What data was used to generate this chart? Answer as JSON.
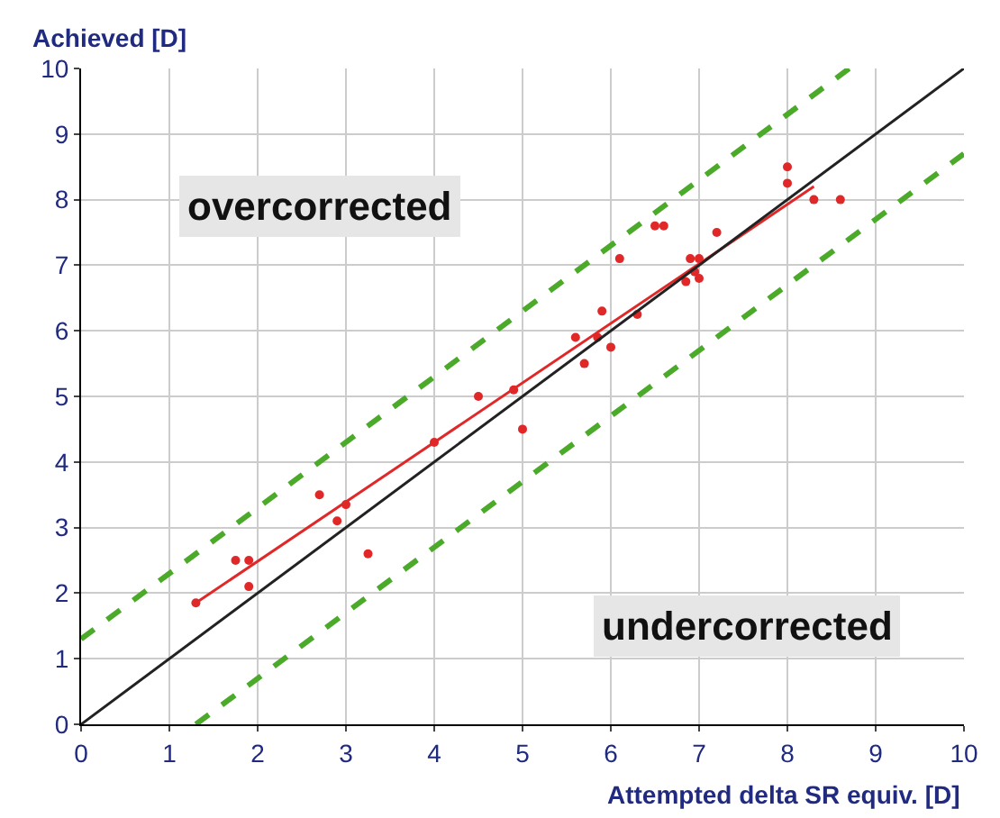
{
  "chart_data": {
    "type": "scatter",
    "xlabel": "Attempted delta SR equiv. [D]",
    "ylabel": "Achieved [D]",
    "xlim": [
      0,
      10
    ],
    "ylim": [
      0,
      10
    ],
    "xticks": [
      0,
      1,
      2,
      3,
      4,
      5,
      6,
      7,
      8,
      9,
      10
    ],
    "yticks": [
      0,
      1,
      2,
      3,
      4,
      5,
      6,
      7,
      8,
      9,
      10
    ],
    "grid": true,
    "marker": "circle",
    "annotations": [
      "overcorrected",
      "undercorrected"
    ],
    "series": [
      {
        "color": "#e02828",
        "x": [
          1.3,
          1.75,
          1.9,
          1.9,
          2.7,
          2.9,
          3.0,
          3.25,
          4.0,
          4.5,
          4.9,
          5.0,
          5.6,
          5.7,
          5.85,
          5.9,
          6.0,
          6.1,
          6.3,
          6.5,
          6.6,
          6.85,
          6.9,
          6.95,
          7.0,
          7.0,
          7.2,
          8.0,
          8.0,
          8.3,
          8.6
        ],
        "values": [
          1.85,
          2.5,
          2.5,
          2.1,
          3.5,
          3.1,
          3.35,
          2.6,
          4.3,
          5.0,
          5.1,
          4.5,
          5.9,
          5.5,
          5.9,
          6.3,
          5.75,
          7.1,
          6.25,
          7.6,
          7.6,
          6.75,
          7.1,
          6.9,
          6.8,
          7.1,
          7.5,
          8.5,
          8.25,
          8.0,
          8.0
        ]
      },
      {
        "type": "line",
        "color": "#e02828",
        "line_style": "solid",
        "marker": "none",
        "x": [
          1.3,
          8.3
        ],
        "values": [
          1.85,
          8.2
        ]
      },
      {
        "type": "line",
        "color": "#222222",
        "line_style": "solid",
        "marker": "none",
        "x": [
          0,
          10
        ],
        "values": [
          0,
          10
        ]
      },
      {
        "type": "line",
        "color": "#4caa2a",
        "line_style": "dashed",
        "marker": "none",
        "x": [
          0,
          8.7
        ],
        "values": [
          1.3,
          10
        ]
      },
      {
        "type": "line",
        "color": "#4caa2a",
        "line_style": "dashed",
        "marker": "none",
        "x": [
          1.3,
          10
        ],
        "values": [
          0,
          8.7
        ]
      }
    ]
  }
}
